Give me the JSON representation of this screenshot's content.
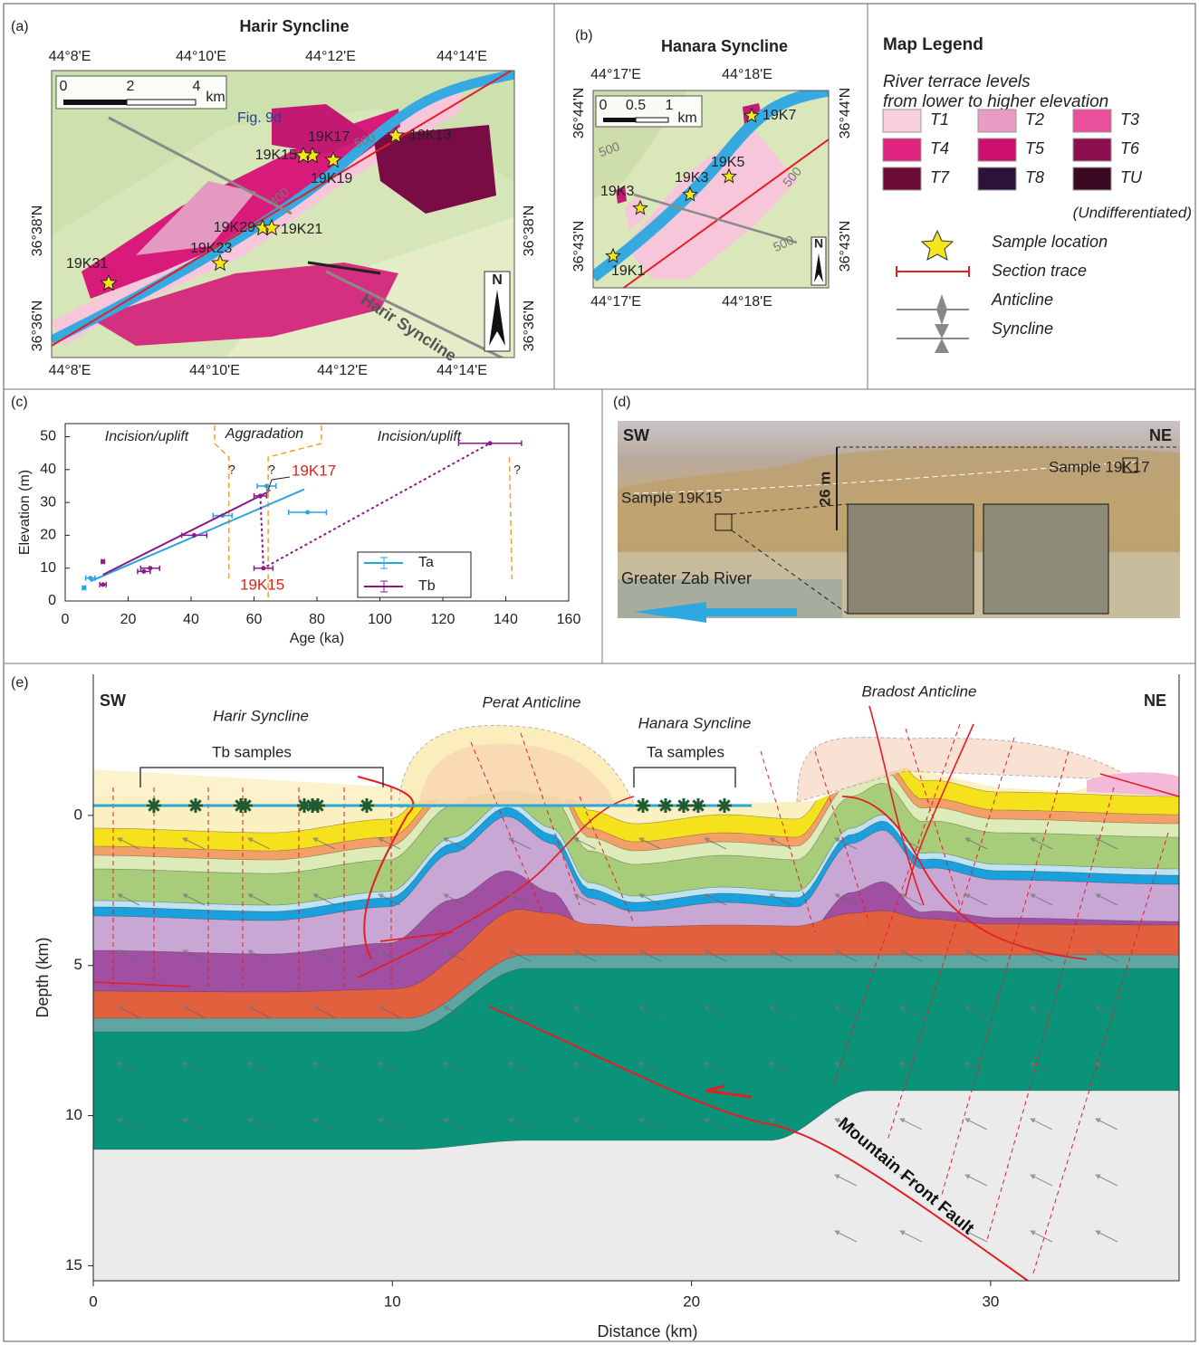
{
  "panel_a": {
    "label": "(a)",
    "title": "Harir Syncline",
    "lon_labels": [
      "44°8'E",
      "44°10'E",
      "44°12'E",
      "44°14'E"
    ],
    "lat_labels": [
      "36°38'N",
      "36°36'N"
    ],
    "scale_labels": [
      "0",
      "2",
      "4",
      "km"
    ],
    "figure_ref": "Fig. 9d",
    "samples": [
      "19K13",
      "19K17",
      "19K15",
      "19K19",
      "19K29",
      "19K21",
      "19K23",
      "19K31"
    ],
    "contour_labels": [
      "500",
      "400"
    ],
    "map_label": "Harir Syncline",
    "north": "N"
  },
  "panel_b": {
    "label": "(b)",
    "title": "Hanara Syncline",
    "lon_labels": [
      "44°17'E",
      "44°18'E"
    ],
    "lat_labels": [
      "36°44'N",
      "36°43'N"
    ],
    "scale_labels": [
      "0",
      "0.5",
      "1",
      "km"
    ],
    "samples": [
      "19K7",
      "19K5",
      "19K3",
      "19K3",
      "19K1"
    ],
    "contour_labels": [
      "500",
      "500",
      "500"
    ],
    "north": "N"
  },
  "legend": {
    "title": "Map Legend",
    "subtitle": [
      "River terrace levels",
      "from lower to higher elevation"
    ],
    "terraces": [
      {
        "label": "T1",
        "color": "#f9cfe0"
      },
      {
        "label": "T2",
        "color": "#e79cc4"
      },
      {
        "label": "T3",
        "color": "#ea4f9c"
      },
      {
        "label": "T4",
        "color": "#e0247f"
      },
      {
        "label": "T5",
        "color": "#cc0f6f"
      },
      {
        "label": "T6",
        "color": "#8e0f4f"
      },
      {
        "label": "T7",
        "color": "#6a0a35"
      },
      {
        "label": "T8",
        "color": "#2b1236"
      },
      {
        "label": "TU",
        "color": "#3b0a22"
      }
    ],
    "tu_note": "(Undifferentiated)",
    "symbols": [
      "Sample location",
      "Section trace",
      "Anticline",
      "Syncline"
    ]
  },
  "panel_d": {
    "label": "(d)",
    "left": "SW",
    "right": "NE",
    "sample_right": "Sample 19K17",
    "sample_left": "Sample 19K15",
    "height": "26 m",
    "river": "Greater Zab River"
  },
  "chart_data": [
    {
      "type": "scatter",
      "label": "(c)",
      "x_label": "Age (ka)",
      "y_label": "Elevation (m)",
      "xlim": [
        0,
        160
      ],
      "ylim": [
        0,
        54
      ],
      "xticks": [
        0,
        20,
        40,
        60,
        80,
        100,
        120,
        140,
        160
      ],
      "yticks": [
        0,
        10,
        20,
        30,
        40,
        50
      ],
      "legend": "lower right",
      "series": [
        {
          "name": "Ta",
          "color": "#29a4dc",
          "x": [
            6,
            8,
            50,
            64,
            77
          ],
          "values": [
            4,
            7,
            26,
            35,
            27
          ],
          "xerr": [
            0.5,
            1.5,
            3,
            3,
            6
          ],
          "fit": {
            "x": [
              8,
              76
            ],
            "values": [
              6,
              34
            ]
          }
        },
        {
          "name": "Tb",
          "color": "#8b1a89",
          "x": [
            12,
            12,
            25,
            27,
            41,
            62,
            63,
            135
          ],
          "values": [
            12,
            5,
            9,
            10,
            20,
            32,
            10,
            48
          ],
          "xerr": [
            0.5,
            1,
            2,
            3,
            4,
            2,
            3,
            10
          ],
          "fit": {
            "x": [
              12,
              64
            ],
            "values": [
              8,
              33
            ]
          },
          "connector": {
            "x": [
              62,
              63,
              135
            ],
            "values": [
              32,
              10,
              48
            ]
          }
        }
      ],
      "phase_labels": [
        "Incision/uplift",
        "Aggradation",
        "Incision/uplift"
      ],
      "boundaries": [
        52,
        64.5,
        142
      ],
      "question_marks": [
        "?",
        "?",
        "?"
      ],
      "sample_labels": [
        "19K17",
        "19K15"
      ]
    },
    {
      "type": "cross-section",
      "label": "(e)",
      "x_label": "Distance (km)",
      "y_label": "Depth (km)",
      "xlim": [
        0,
        36.3
      ],
      "ylim": [
        -4.7,
        15.5
      ],
      "y_inverted": true,
      "xticks": [
        0,
        10,
        20,
        30
      ],
      "yticks": [
        0,
        5,
        10,
        15
      ],
      "ends": [
        "SW",
        "NE"
      ],
      "structures": [
        "Harir Syncline",
        "Perat Anticline",
        "Hanara Syncline",
        "Bradost Anticline"
      ],
      "sample_groups": [
        "Tb samples",
        "Ta samples"
      ],
      "fault": "Mountain Front Fault"
    }
  ]
}
